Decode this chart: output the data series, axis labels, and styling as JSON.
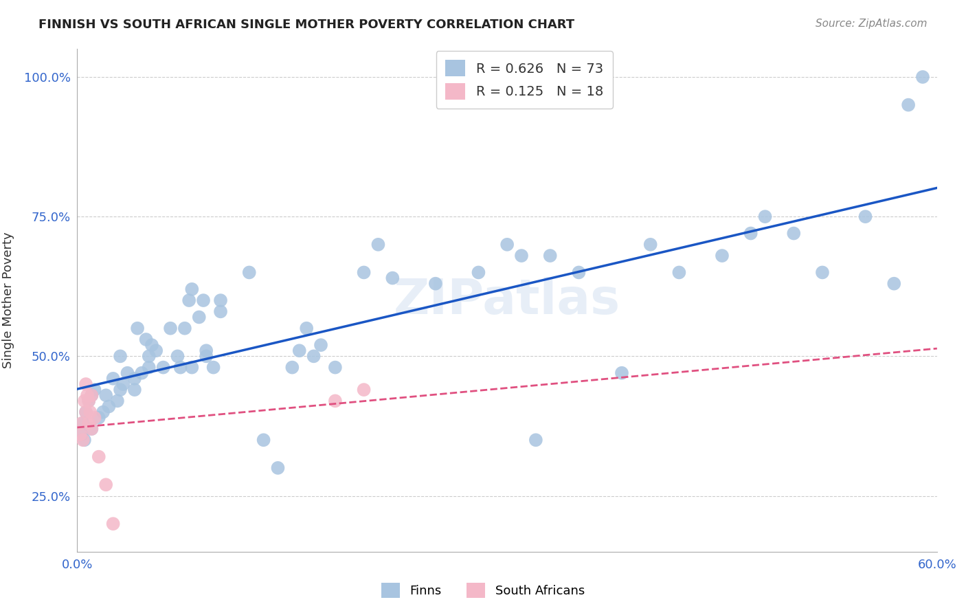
{
  "title": "FINNISH VS SOUTH AFRICAN SINGLE MOTHER POVERTY CORRELATION CHART",
  "source": "Source: ZipAtlas.com",
  "xlabel_label": "",
  "ylabel_label": "Single Mother Poverty",
  "x_min": 0.0,
  "x_max": 0.6,
  "y_min": 0.0,
  "y_max": 1.05,
  "x_ticks": [
    0.0,
    0.1,
    0.2,
    0.3,
    0.4,
    0.5,
    0.6
  ],
  "x_tick_labels": [
    "0.0%",
    "",
    "",
    "",
    "",
    "",
    "60.0%"
  ],
  "y_ticks": [
    0.25,
    0.5,
    0.75,
    1.0
  ],
  "y_tick_labels": [
    "25.0%",
    "50.0%",
    "75.0%",
    "100.0%"
  ],
  "legend_R_finns": "0.626",
  "legend_N_finns": "73",
  "legend_R_sa": "0.125",
  "legend_N_sa": "18",
  "finns_color": "#a8c4e0",
  "sa_color": "#f4b8c8",
  "finns_line_color": "#1a56c4",
  "sa_line_color": "#e05080",
  "sa_line_dashed": true,
  "watermark": "ZIPatlas",
  "finns_x": [
    0.003,
    0.004,
    0.005,
    0.006,
    0.008,
    0.01,
    0.01,
    0.012,
    0.015,
    0.018,
    0.02,
    0.022,
    0.025,
    0.028,
    0.03,
    0.03,
    0.032,
    0.035,
    0.04,
    0.04,
    0.042,
    0.045,
    0.048,
    0.05,
    0.05,
    0.052,
    0.055,
    0.06,
    0.065,
    0.07,
    0.072,
    0.075,
    0.078,
    0.08,
    0.08,
    0.085,
    0.088,
    0.09,
    0.09,
    0.095,
    0.1,
    0.1,
    0.12,
    0.13,
    0.14,
    0.15,
    0.155,
    0.16,
    0.165,
    0.17,
    0.18,
    0.2,
    0.21,
    0.22,
    0.25,
    0.28,
    0.3,
    0.31,
    0.32,
    0.33,
    0.35,
    0.38,
    0.4,
    0.42,
    0.45,
    0.47,
    0.48,
    0.5,
    0.52,
    0.55,
    0.57,
    0.58,
    0.59
  ],
  "finns_y": [
    0.36,
    0.38,
    0.35,
    0.4,
    0.42,
    0.37,
    0.43,
    0.44,
    0.39,
    0.4,
    0.43,
    0.41,
    0.46,
    0.42,
    0.44,
    0.5,
    0.45,
    0.47,
    0.44,
    0.46,
    0.55,
    0.47,
    0.53,
    0.48,
    0.5,
    0.52,
    0.51,
    0.48,
    0.55,
    0.5,
    0.48,
    0.55,
    0.6,
    0.62,
    0.48,
    0.57,
    0.6,
    0.5,
    0.51,
    0.48,
    0.58,
    0.6,
    0.65,
    0.35,
    0.3,
    0.48,
    0.51,
    0.55,
    0.5,
    0.52,
    0.48,
    0.65,
    0.7,
    0.64,
    0.63,
    0.65,
    0.7,
    0.68,
    0.35,
    0.68,
    0.65,
    0.47,
    0.7,
    0.65,
    0.68,
    0.72,
    0.75,
    0.72,
    0.65,
    0.75,
    0.63,
    0.95,
    1.0
  ],
  "sa_x": [
    0.002,
    0.003,
    0.004,
    0.005,
    0.006,
    0.006,
    0.007,
    0.008,
    0.008,
    0.009,
    0.01,
    0.01,
    0.012,
    0.015,
    0.02,
    0.025,
    0.18,
    0.2
  ],
  "sa_y": [
    0.36,
    0.38,
    0.35,
    0.42,
    0.4,
    0.45,
    0.43,
    0.38,
    0.42,
    0.4,
    0.37,
    0.43,
    0.39,
    0.32,
    0.27,
    0.2,
    0.42,
    0.44
  ]
}
